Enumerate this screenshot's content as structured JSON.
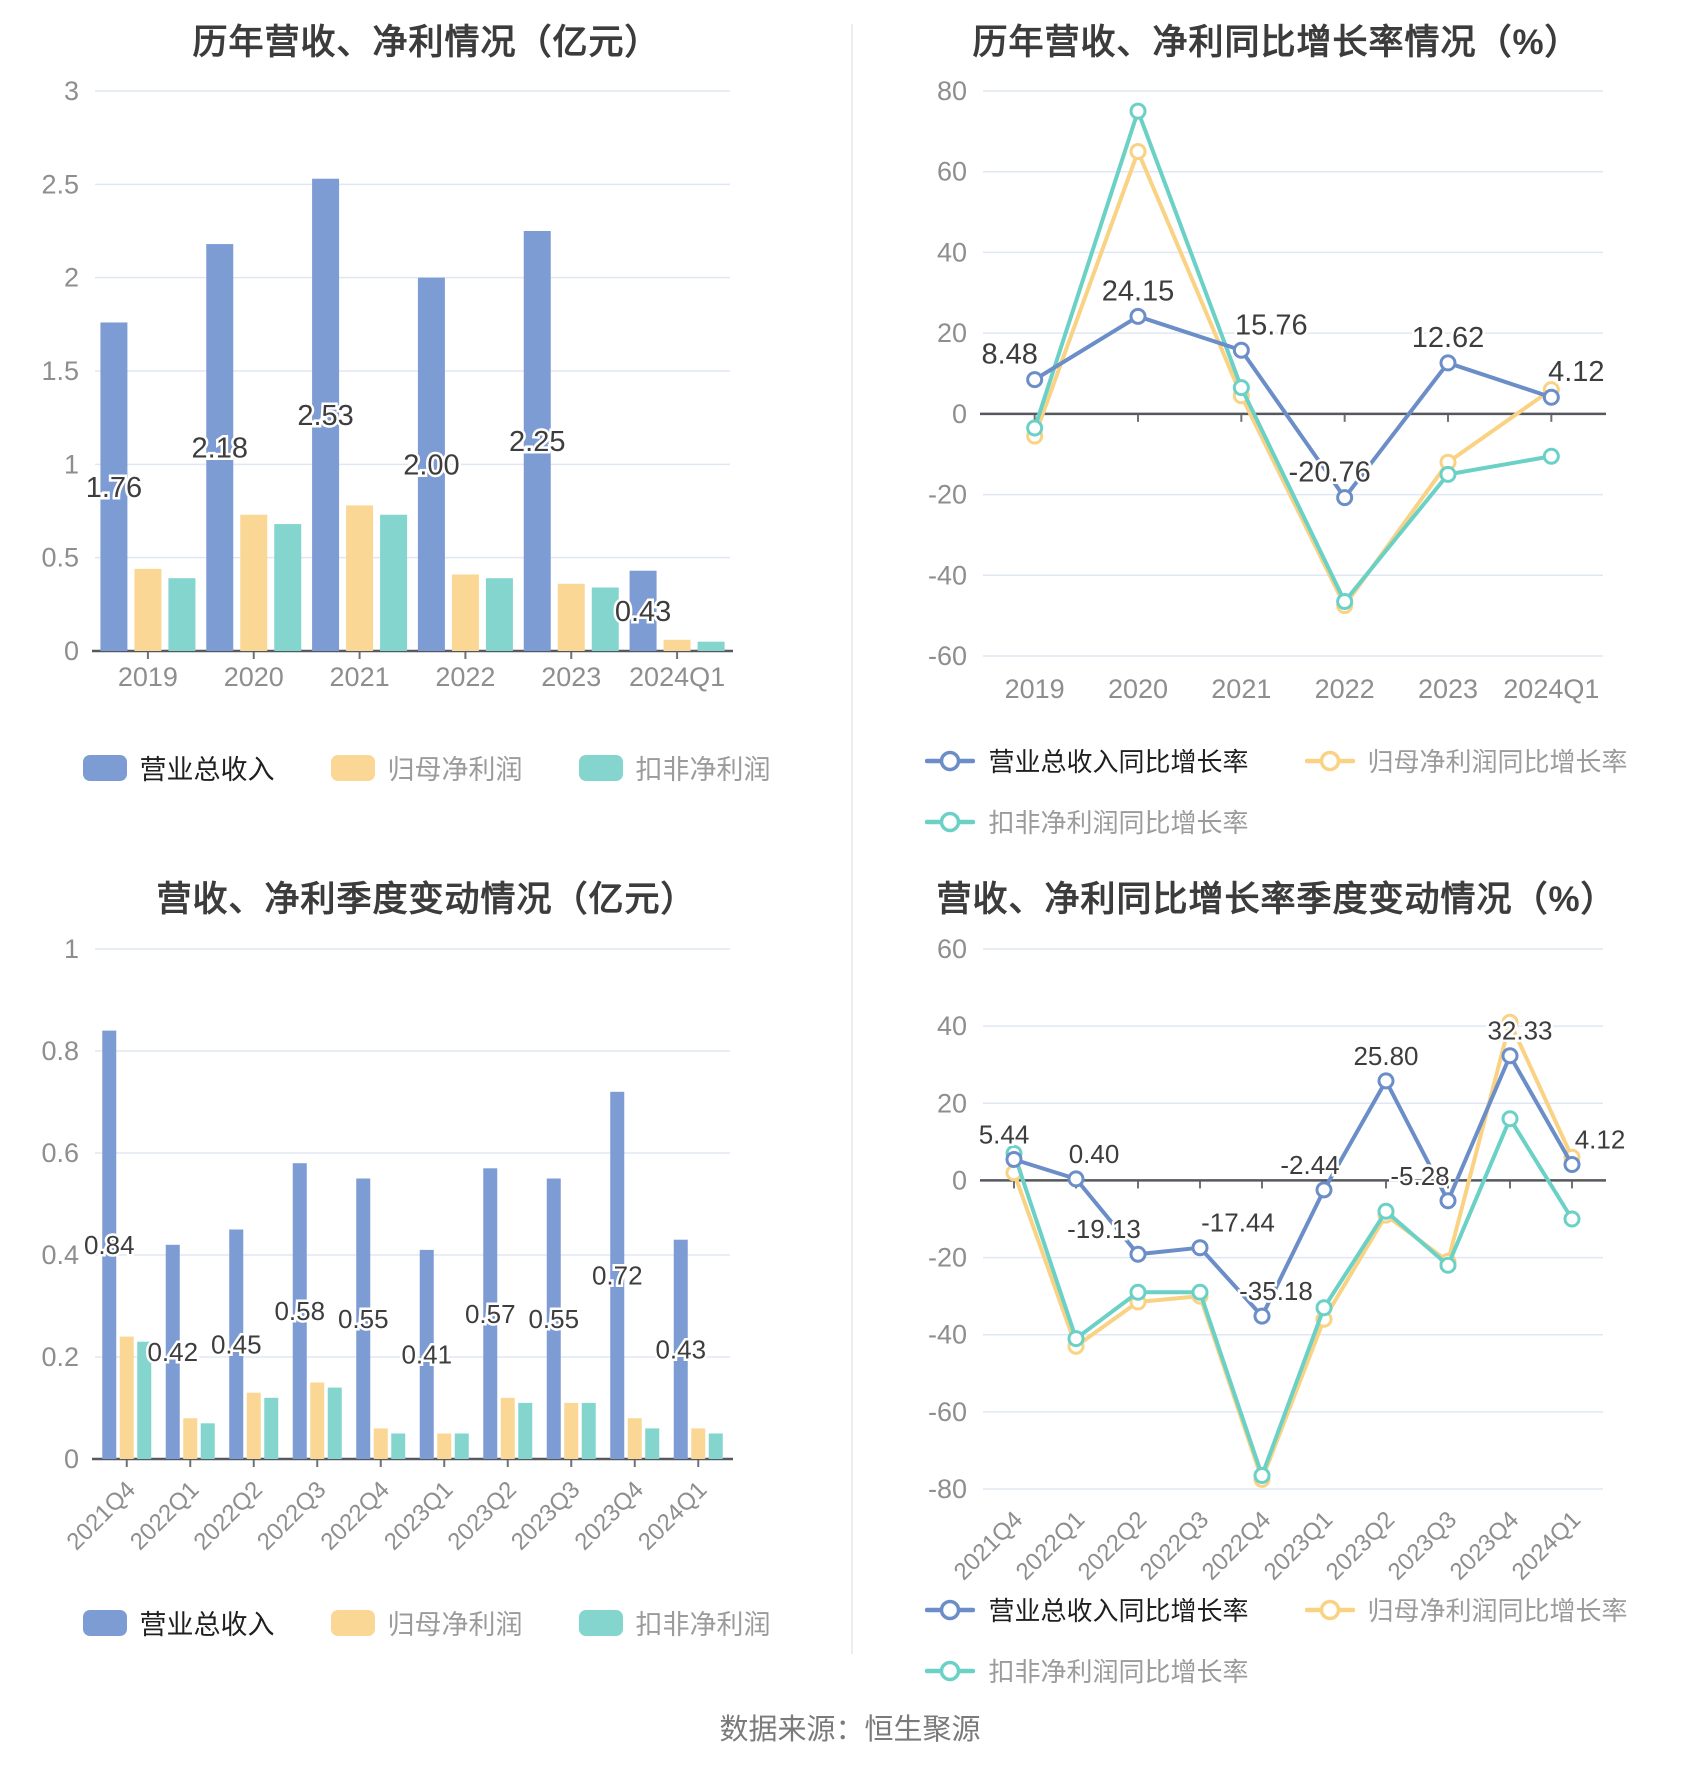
{
  "footer": {
    "source_text": "数据来源：恒生聚源"
  },
  "palette": {
    "bar_blue": "#7E9CD4",
    "bar_orange": "#FBD795",
    "bar_teal": "#83D5CE",
    "line_blue": "#6B8EC8",
    "line_orange": "#F9D283",
    "line_teal": "#6BD1C6",
    "grid": "#E0E7F4",
    "zero_axis": "#55585E",
    "tick_text": "#8E8E8E",
    "data_label": "#3D3D3D",
    "title_text": "#3C3C3C"
  },
  "chart_data": [
    {
      "type": "bar",
      "title": "历年营收、净利情况（亿元）",
      "categories": [
        "2019",
        "2020",
        "2021",
        "2022",
        "2023",
        "2024Q1"
      ],
      "series": [
        {
          "name": "营业总收入",
          "color": "#7E9CD4",
          "labeled": true,
          "values": [
            1.76,
            2.18,
            2.53,
            2.0,
            2.25,
            0.43
          ]
        },
        {
          "name": "归母净利润",
          "color": "#FBD795",
          "labeled": false,
          "values": [
            0.44,
            0.73,
            0.78,
            0.41,
            0.36,
            0.06
          ]
        },
        {
          "name": "扣非净利润",
          "color": "#83D5CE",
          "labeled": false,
          "values": [
            0.39,
            0.68,
            0.73,
            0.39,
            0.34,
            0.05
          ]
        }
      ],
      "ylim": [
        0,
        3
      ],
      "ytick_step": 0.5,
      "grid": true,
      "legend_position": "bottom",
      "x_label_rotate": 0
    },
    {
      "type": "line",
      "title": "历年营收、净利同比增长率情况（%）",
      "categories": [
        "2019",
        "2020",
        "2021",
        "2022",
        "2023",
        "2024Q1"
      ],
      "series": [
        {
          "name": "营业总收入同比增长率",
          "color": "#6B8EC8",
          "labeled": true,
          "values": [
            8.48,
            24.15,
            15.76,
            -20.76,
            12.62,
            4.12
          ]
        },
        {
          "name": "归母净利润同比增长率",
          "color": "#F9D283",
          "labeled": false,
          "values": [
            -5.5,
            65,
            4.5,
            -47.5,
            -12,
            6
          ]
        },
        {
          "name": "扣非净利润同比增长率",
          "color": "#6BD1C6",
          "labeled": false,
          "values": [
            -3.5,
            75,
            6.5,
            -46.5,
            -15,
            -10.5
          ]
        }
      ],
      "ylim": [
        -60,
        80
      ],
      "ytick_step": 20,
      "grid": true,
      "legend_position": "bottom",
      "x_label_rotate": 0
    },
    {
      "type": "bar",
      "title": "营收、净利季度变动情况（亿元）",
      "categories": [
        "2021Q4",
        "2022Q1",
        "2022Q2",
        "2022Q3",
        "2022Q4",
        "2023Q1",
        "2023Q2",
        "2023Q3",
        "2023Q4",
        "2024Q1"
      ],
      "series": [
        {
          "name": "营业总收入",
          "color": "#7E9CD4",
          "labeled": true,
          "values": [
            0.84,
            0.42,
            0.45,
            0.58,
            0.55,
            0.41,
            0.57,
            0.55,
            0.72,
            0.43
          ]
        },
        {
          "name": "归母净利润",
          "color": "#FBD795",
          "labeled": false,
          "values": [
            0.24,
            0.08,
            0.13,
            0.15,
            0.06,
            0.05,
            0.12,
            0.11,
            0.08,
            0.06
          ]
        },
        {
          "name": "扣非净利润",
          "color": "#83D5CE",
          "labeled": false,
          "values": [
            0.23,
            0.07,
            0.12,
            0.14,
            0.05,
            0.05,
            0.11,
            0.11,
            0.06,
            0.05
          ]
        }
      ],
      "ylim": [
        0,
        1
      ],
      "ytick_step": 0.2,
      "grid": true,
      "legend_position": "bottom",
      "x_label_rotate": 45
    },
    {
      "type": "line",
      "title": "营收、净利同比增长率季度变动情况（%）",
      "categories": [
        "2021Q4",
        "2022Q1",
        "2022Q2",
        "2022Q3",
        "2022Q4",
        "2023Q1",
        "2023Q2",
        "2023Q3",
        "2023Q4",
        "2024Q1"
      ],
      "series": [
        {
          "name": "营业总收入同比增长率",
          "color": "#6B8EC8",
          "labeled": true,
          "values": [
            5.44,
            0.4,
            -19.13,
            -17.44,
            -35.18,
            -2.44,
            25.8,
            -5.28,
            32.33,
            4.12
          ]
        },
        {
          "name": "归母净利润同比增长率",
          "color": "#F9D283",
          "labeled": false,
          "values": [
            2,
            -43,
            -31.5,
            -30,
            -77.5,
            -36,
            -9,
            -21,
            41,
            6
          ]
        },
        {
          "name": "扣非净利润同比增长率",
          "color": "#6BD1C6",
          "labeled": false,
          "values": [
            7,
            -41,
            -29,
            -29,
            -76.5,
            -33,
            -8,
            -22,
            16,
            -10
          ]
        }
      ],
      "ylim": [
        -80,
        60
      ],
      "ytick_step": 20,
      "grid": true,
      "legend_position": "bottom",
      "x_label_rotate": 45
    }
  ]
}
